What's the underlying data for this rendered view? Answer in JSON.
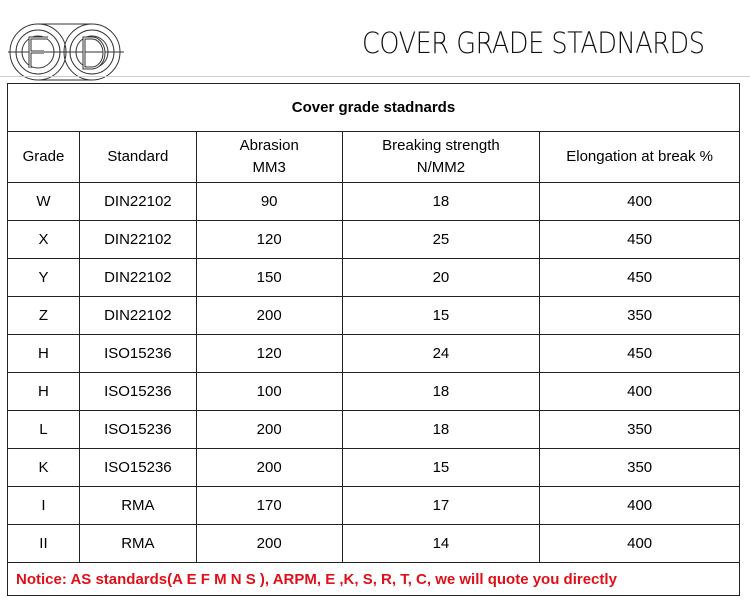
{
  "logo": {
    "text": "FD"
  },
  "page_title": "COVER GRADE STADNARDS",
  "table": {
    "caption": "Cover grade stadnards",
    "headers": [
      {
        "line1": "Grade",
        "line2": ""
      },
      {
        "line1": "Standard",
        "line2": ""
      },
      {
        "line1": "Abrasion",
        "line2": "MM3"
      },
      {
        "line1": "Breaking strength",
        "line2": "N/MM2"
      },
      {
        "line1": "Elongation at break %",
        "line2": ""
      }
    ],
    "rows": [
      [
        "W",
        "DIN22102",
        "90",
        "18",
        "400"
      ],
      [
        "X",
        "DIN22102",
        "120",
        "25",
        "450"
      ],
      [
        "Y",
        "DIN22102",
        "150",
        "20",
        "450"
      ],
      [
        "Z",
        "DIN22102",
        "200",
        "15",
        "350"
      ],
      [
        "H",
        "ISO15236",
        "120",
        "24",
        "450"
      ],
      [
        "H",
        "ISO15236",
        "100",
        "18",
        "400"
      ],
      [
        "L",
        "ISO15236",
        "200",
        "18",
        "350"
      ],
      [
        "K",
        "ISO15236",
        "200",
        "15",
        "350"
      ],
      [
        "I",
        "RMA",
        "170",
        "17",
        "400"
      ],
      [
        "II",
        "RMA",
        "200",
        "14",
        "400"
      ]
    ],
    "notice": "Notice: AS standards(A E F M N S ), ARPM, E ,K, S, R, T, C, we will quote you directly"
  },
  "colors": {
    "notice": "#e0101a"
  }
}
